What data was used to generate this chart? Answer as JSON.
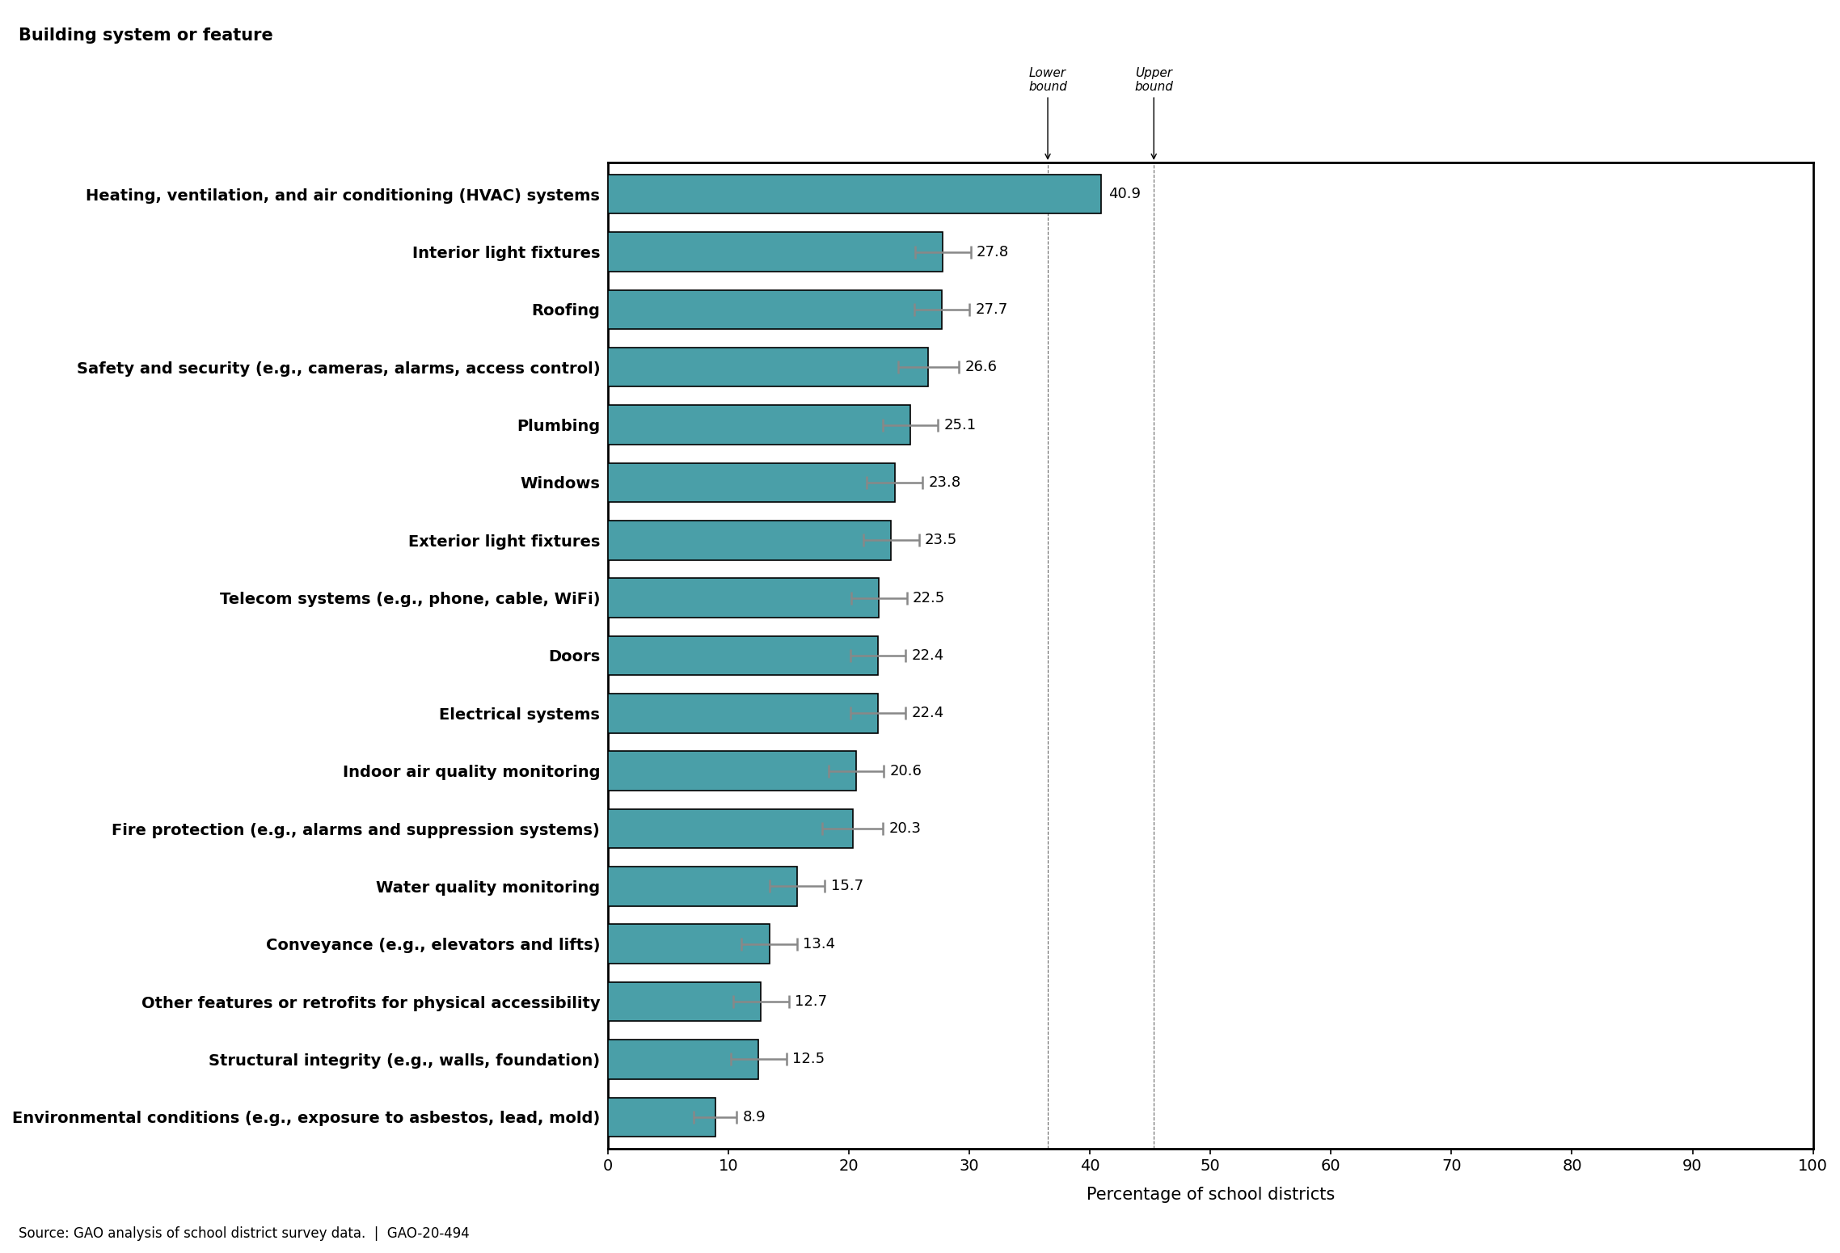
{
  "categories": [
    "Heating, ventilation, and air conditioning (HVAC) systems",
    "Interior light fixtures",
    "Roofing",
    "Safety and security (e.g., cameras, alarms, access control)",
    "Plumbing",
    "Windows",
    "Exterior light fixtures",
    "Telecom systems (e.g., phone, cable, WiFi)",
    "Doors",
    "Electrical systems",
    "Indoor air quality monitoring",
    "Fire protection (e.g., alarms and suppression systems)",
    "Water quality monitoring",
    "Conveyance (e.g., elevators and lifts)",
    "Other features or retrofits for physical accessibility",
    "Structural integrity (e.g., walls, foundation)",
    "Environmental conditions (e.g., exposure to asbestos, lead, mold)"
  ],
  "values": [
    40.9,
    27.8,
    27.7,
    26.6,
    25.1,
    23.8,
    23.5,
    22.5,
    22.4,
    22.4,
    20.6,
    20.3,
    15.7,
    13.4,
    12.7,
    12.5,
    8.9
  ],
  "err_lower": [
    0.0,
    2.3,
    2.3,
    2.5,
    2.3,
    2.3,
    2.3,
    2.3,
    2.3,
    2.3,
    2.3,
    2.5,
    2.3,
    2.3,
    2.3,
    2.3,
    1.8
  ],
  "err_upper": [
    0.0,
    2.3,
    2.3,
    2.5,
    2.3,
    2.3,
    2.3,
    2.3,
    2.3,
    2.3,
    2.3,
    2.5,
    2.3,
    2.3,
    2.3,
    2.3,
    1.8
  ],
  "bar_color": "#4A9FA8",
  "err_color": "#888888",
  "background_color": "#ffffff",
  "title_label": "Building system or feature",
  "xlabel": "Percentage of school districts",
  "xlim": [
    0,
    100
  ],
  "xticks": [
    0,
    10,
    20,
    30,
    40,
    50,
    60,
    70,
    80,
    90,
    100
  ],
  "footnote": "Source: GAO analysis of school district survey data.  |  GAO-20-494",
  "lower_bound_val": 36.5,
  "upper_bound_val": 45.3
}
